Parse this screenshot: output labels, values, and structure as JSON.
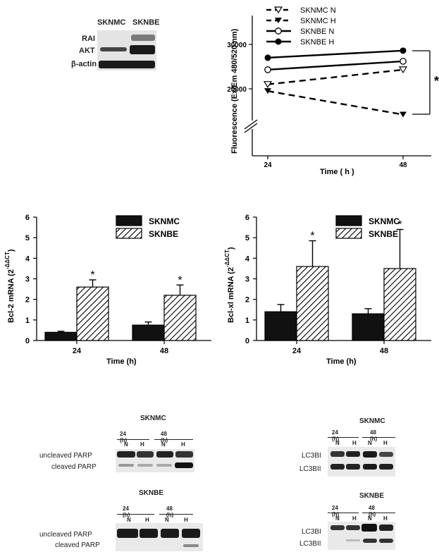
{
  "top_blot": {
    "col_labels": [
      "SKNMC",
      "SKNBE"
    ],
    "row_labels": [
      "RAI",
      "AKT",
      "β-actin"
    ]
  },
  "chart_data": [
    {
      "type": "line",
      "xlabel": "Time ( h )",
      "ylabel": "Fluorescence (Ex/Em 480/520 nm)",
      "x": [
        24,
        48
      ],
      "x_tick_labels": [
        "24",
        "48"
      ],
      "y_tick_labels": [
        "20000",
        "30000"
      ],
      "ylim": [
        11000,
        36000
      ],
      "axis_break": true,
      "legend_position": "top",
      "series": [
        {
          "name": "SKNMC N",
          "values": [
            21000,
            24300
          ],
          "line": "dashed",
          "marker": "open-triangle-down"
        },
        {
          "name": "SKNMC H",
          "values": [
            19500,
            14200
          ],
          "line": "dashed",
          "marker": "filled-triangle-down"
        },
        {
          "name": "SKNBE N",
          "values": [
            24300,
            26200
          ],
          "line": "solid",
          "marker": "open-circle"
        },
        {
          "name": "SKNBE H",
          "values": [
            27000,
            28600
          ],
          "line": "solid",
          "marker": "filled-circle"
        }
      ],
      "annotation": "*"
    },
    {
      "type": "bar",
      "ylabel_main": "Bcl-2 mRNA (2",
      "ylabel_exp": "-ΔΔCT",
      "ylabel_close": ")",
      "xlabel": "Time (h)",
      "categories": [
        "24",
        "48"
      ],
      "ylim": [
        0,
        6
      ],
      "y_ticks": [
        "0",
        "1",
        "2",
        "3",
        "4",
        "5",
        "6"
      ],
      "legend_position": "top-right",
      "series": [
        {
          "name": "SKNMC",
          "values": [
            0.4,
            0.75
          ],
          "errors": [
            0.05,
            0.15
          ],
          "fill": "solid-black"
        },
        {
          "name": "SKNBE",
          "values": [
            2.6,
            2.2
          ],
          "errors": [
            0.35,
            0.5
          ],
          "fill": "hatched",
          "significance": [
            "*",
            "*"
          ]
        }
      ]
    },
    {
      "type": "bar",
      "ylabel_main": "Bcl-xl mRNA (2",
      "ylabel_exp": "-ΔΔCT",
      "ylabel_close": ")",
      "xlabel": "Time (h)",
      "categories": [
        "24",
        "48"
      ],
      "ylim": [
        0,
        6
      ],
      "y_ticks": [
        "0",
        "1",
        "2",
        "3",
        "4",
        "5",
        "6"
      ],
      "legend_position": "top-right",
      "series": [
        {
          "name": "SKNMC",
          "values": [
            1.4,
            1.3
          ],
          "errors": [
            0.35,
            0.25
          ],
          "fill": "solid-black"
        },
        {
          "name": "SKNBE",
          "values": [
            3.6,
            3.5
          ],
          "errors": [
            1.25,
            1.9
          ],
          "fill": "hatched",
          "significance": [
            "*",
            "*"
          ]
        }
      ]
    }
  ],
  "parp_blots": [
    {
      "title": "SKNMC",
      "time_labels": [
        "24 (h)",
        "48 (h)"
      ],
      "lane_labels": [
        "N",
        "H",
        "N",
        "H"
      ],
      "row_labels": [
        "uncleaved PARP",
        "cleaved PARP"
      ]
    },
    {
      "title": "SKNBE",
      "time_labels": [
        "24 (h)",
        "48 (h)"
      ],
      "lane_labels": [
        "N",
        "H",
        "N",
        "H"
      ],
      "row_labels": [
        "uncleaved PARP",
        "cleaved PARP"
      ]
    }
  ],
  "lc3_blots": [
    {
      "title": "SKNMC",
      "time_labels": [
        "24 (h)",
        "48 (h)"
      ],
      "lane_labels": [
        "N",
        "H",
        "N",
        "H"
      ],
      "row_labels": [
        "LC3BI",
        "LC3BII"
      ]
    },
    {
      "title": "SKNBE",
      "time_labels": [
        "24 (h)",
        "48 (h)"
      ],
      "lane_labels": [
        "N",
        "H",
        "N",
        "H"
      ],
      "row_labels": [
        "LC3BI",
        "LC3BII"
      ]
    }
  ]
}
